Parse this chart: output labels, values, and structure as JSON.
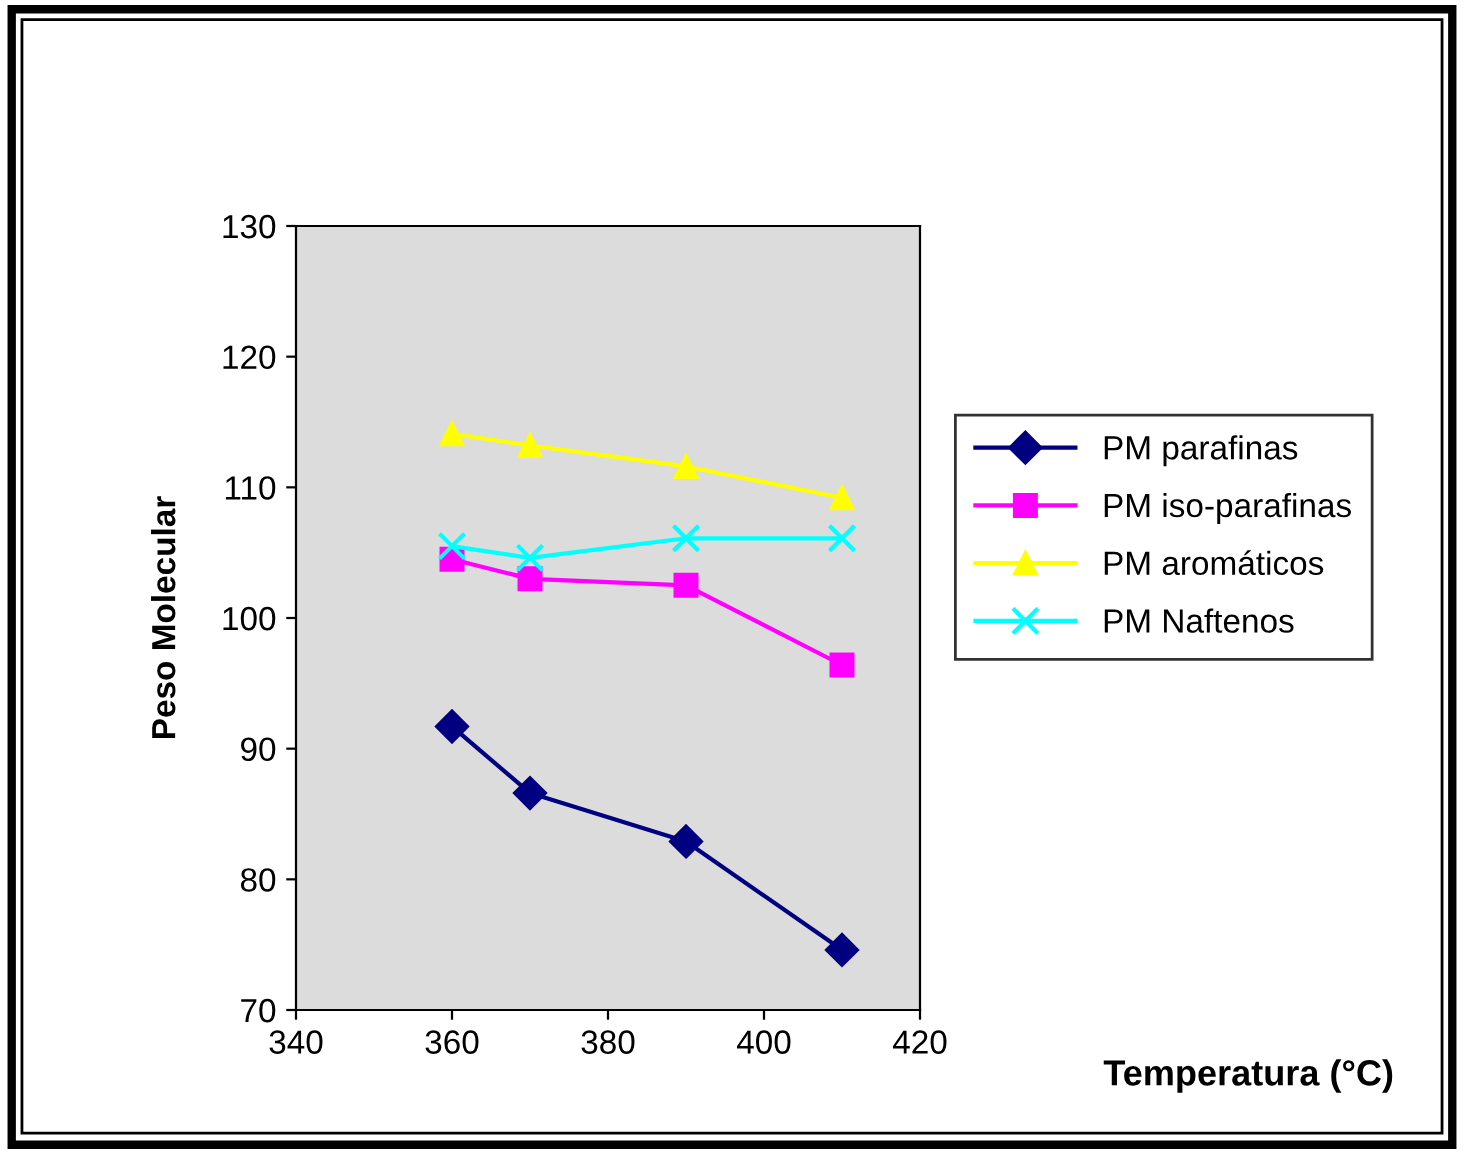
{
  "chart_data": {
    "type": "line",
    "xlabel": "Temperatura (°C)",
    "ylabel": "Peso Molecular",
    "x": [
      360,
      370,
      390,
      410
    ],
    "series": [
      {
        "name": "PM parafinas",
        "color": "#000080",
        "marker": "diamond",
        "values": [
          91.7,
          86.6,
          82.9,
          74.6
        ]
      },
      {
        "name": "PM iso-parafinas",
        "color": "#ff00ff",
        "marker": "square",
        "values": [
          104.5,
          103.0,
          102.5,
          96.4
        ]
      },
      {
        "name": "PM aromáticos",
        "color": "#ffff00",
        "marker": "triangle",
        "values": [
          114.1,
          113.2,
          111.6,
          109.2
        ]
      },
      {
        "name": "PM Naftenos",
        "color": "#00ffff",
        "marker": "cross",
        "values": [
          105.5,
          104.6,
          106.1,
          106.1
        ]
      }
    ],
    "xlim": [
      340,
      420
    ],
    "xticks": [
      340,
      360,
      380,
      400,
      420
    ],
    "ylim": [
      70,
      130
    ],
    "yticks": [
      70,
      80,
      90,
      100,
      110,
      120,
      130
    ],
    "grid": false,
    "legend": "right",
    "line_style": "solid"
  }
}
